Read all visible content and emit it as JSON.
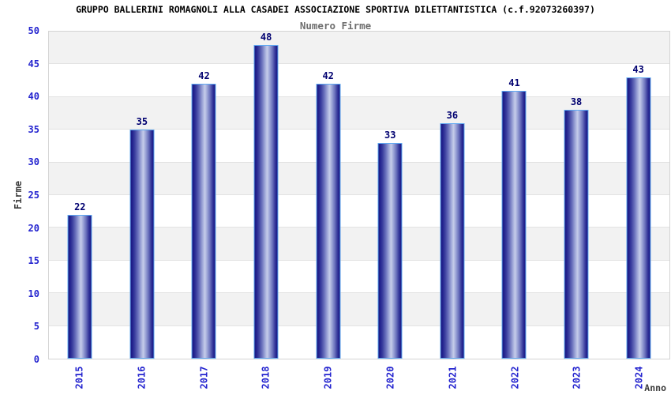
{
  "chart_data": {
    "type": "bar",
    "title": "GRUPPO BALLERINI ROMAGNOLI ALLA CASADEI ASSOCIAZIONE SPORTIVA DILETTANTISTICA (c.f.92073260397)",
    "subtitle": "Numero Firme",
    "categories": [
      "2015",
      "2016",
      "2017",
      "2018",
      "2019",
      "2020",
      "2021",
      "2022",
      "2023",
      "2024"
    ],
    "values": [
      22,
      35,
      42,
      48,
      42,
      33,
      36,
      41,
      38,
      43
    ],
    "xlabel": "Anno",
    "ylabel": "Firme",
    "ylim": [
      0,
      50
    ],
    "ytick_step": 5,
    "yticks": [
      0,
      5,
      10,
      15,
      20,
      25,
      30,
      35,
      40,
      45,
      50
    ],
    "grid": "horizontal lines every 5 units, alternating shaded bands",
    "legend": "none",
    "bar_value_labels_shown": true,
    "colors": {
      "title_text": "#000000",
      "subtitle_text": "#6e6e6e",
      "axis_tick_text": "#2424cf",
      "axis_title_text": "#3c3c3c",
      "bar_value_text": "#000070",
      "bar_border": "#5fa8f2",
      "band_shade": "#f2f2f2",
      "gridline": "#e2e2e2",
      "plot_border": "#d4d4d4",
      "bar_gradient_stops": [
        "#181880 0%",
        "#23238f 8%",
        "#3b3f9f 18%",
        "#6a71bc 32%",
        "#9aa3d6 44%",
        "#c6cdea 55%",
        "#9aa3d6 66%",
        "#6a71bc 78%",
        "#3b3f9f 88%",
        "#23238f 95%",
        "#181880 100%"
      ]
    }
  }
}
